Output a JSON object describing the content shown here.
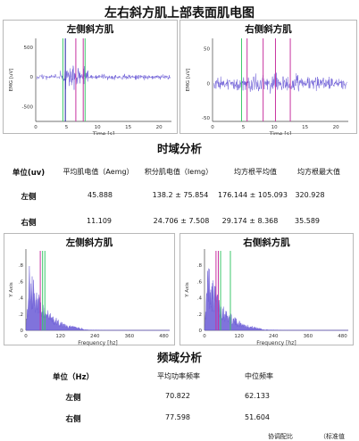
{
  "page_title": "左右斜方肌上部表面肌电图",
  "chart_data": [
    {
      "type": "line",
      "title": "左侧斜方肌",
      "xlabel": "Time [s]",
      "ylabel": "EMG [uV]",
      "xlim": [
        0,
        22
      ],
      "ylim": [
        -750,
        650
      ],
      "x_ticks": [
        "0",
        "5",
        "10",
        "15",
        "20"
      ],
      "y_ticks": [
        "500",
        "0",
        "-500"
      ],
      "markers": [
        {
          "x": 4.4,
          "color": "#3cc86a"
        },
        {
          "x": 4.8,
          "color": "#1f1f9f"
        },
        {
          "x": 6.5,
          "color": "#c832a0"
        },
        {
          "x": 7.7,
          "color": "#c832a0"
        },
        {
          "x": 8.0,
          "color": "#3cc86a"
        }
      ]
    },
    {
      "type": "line",
      "title": "右侧斜方肌",
      "xlabel": "Time [s]",
      "ylabel": "EMG [uV]",
      "xlim": [
        0,
        22
      ],
      "ylim": [
        -55,
        65
      ],
      "x_ticks": [
        "0",
        "5",
        "10",
        "15",
        "20"
      ],
      "y_ticks": [
        "50",
        "0",
        "-50"
      ],
      "markers": [
        {
          "x": 4.7,
          "color": "#3cc86a"
        },
        {
          "x": 5.6,
          "color": "#c832a0"
        },
        {
          "x": 8.2,
          "color": "#c832a0"
        },
        {
          "x": 10.2,
          "color": "#c832a0"
        },
        {
          "x": 12.6,
          "color": "#c832a0"
        }
      ]
    },
    {
      "type": "area",
      "title": "左侧斜方肌",
      "xlabel": "Frequency [hz]",
      "ylabel": "Y Axis",
      "xlim": [
        0,
        500
      ],
      "ylim": [
        0,
        1
      ],
      "x_ticks": [
        "0",
        "120",
        "240",
        "360",
        "480"
      ],
      "y_ticks": [
        "0",
        ".2",
        ".4",
        ".6",
        ".8"
      ],
      "markers": [
        {
          "x": 50,
          "color": "#c832a0"
        },
        {
          "x": 58,
          "color": "#3cc86a"
        },
        {
          "x": 66,
          "color": "#3cc86a"
        }
      ]
    },
    {
      "type": "area",
      "title": "右侧斜方肌",
      "xlabel": "Frequency [hz]",
      "ylabel": "Y Axis",
      "xlim": [
        0,
        500
      ],
      "ylim": [
        0,
        1
      ],
      "x_ticks": [
        "0",
        "120",
        "240",
        "360",
        "480"
      ],
      "y_ticks": [
        "0",
        ".2",
        ".4",
        ".6",
        ".8"
      ],
      "markers": [
        {
          "x": 40,
          "color": "#c832a0"
        },
        {
          "x": 48,
          "color": "#c832a0"
        },
        {
          "x": 56,
          "color": "#3cc86a"
        },
        {
          "x": 90,
          "color": "#3cc86a"
        }
      ]
    }
  ],
  "time_section": {
    "heading": "时域分析",
    "headers": [
      "单位(uv)",
      "平均肌电值（Aemg）",
      "积分肌电值（Iemg）",
      "均方根平均值",
      "均方根最大值"
    ],
    "rows": [
      {
        "label": "左侧",
        "values": [
          "45.888",
          "138.2 ± 75.854",
          "176.144 ± 105.093",
          "320.928"
        ]
      },
      {
        "label": "右侧",
        "values": [
          "11.109",
          "24.706 ± 7.508",
          "29.174 ± 8.368",
          "35.589"
        ]
      }
    ]
  },
  "freq_section": {
    "heading": "频域分析",
    "headers": [
      "单位（Hz）",
      "平均功率频率",
      "中位频率"
    ],
    "rows": [
      {
        "label": "左侧",
        "values": [
          "70.822",
          "62.133"
        ]
      },
      {
        "label": "右侧",
        "values": [
          "77.598",
          "51.604"
        ]
      }
    ],
    "cut_off_text": [
      "协调配比",
      "（标准值"
    ]
  },
  "colors": {
    "signal": "#6a5ad6",
    "axis": "#333333",
    "frame": "#b8b8b8"
  }
}
